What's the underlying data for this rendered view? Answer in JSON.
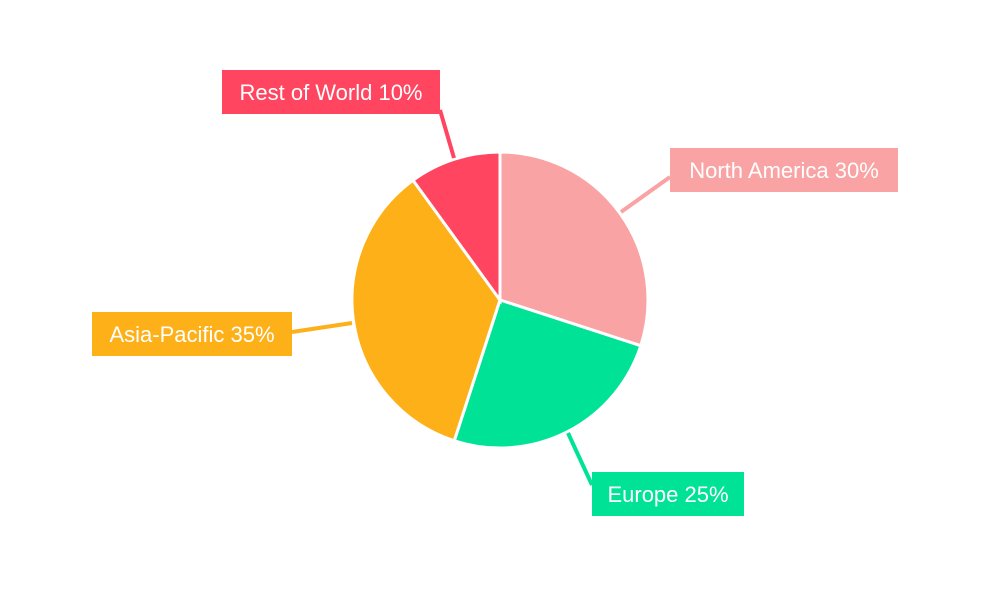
{
  "chart_data": {
    "type": "pie",
    "categories": [
      "North America",
      "Europe",
      "Asia-Pacific",
      "Rest of World"
    ],
    "values": [
      30,
      25,
      35,
      10
    ],
    "labels": [
      "North America 30%",
      "Europe 25%",
      "Asia-Pacific 35%",
      "Rest of World 10%"
    ],
    "colors": [
      "#f9a3a4",
      "#00e396",
      "#feb019",
      "#ff4560"
    ],
    "start_angle": "top",
    "direction": "clockwise"
  }
}
